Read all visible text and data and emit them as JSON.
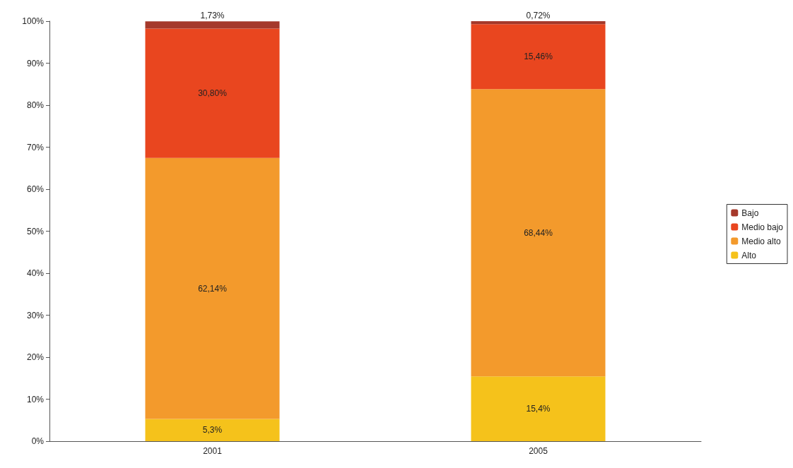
{
  "chart_data": {
    "type": "bar",
    "stacked": true,
    "categories": [
      "2001",
      "2005"
    ],
    "series": [
      {
        "name": "Alto",
        "color": "#f5c21b",
        "values": [
          5.3,
          15.4
        ],
        "value_labels": [
          "5,3%",
          "15,4%"
        ]
      },
      {
        "name": "Medio alto",
        "color": "#f39a2c",
        "values": [
          62.14,
          68.44
        ],
        "value_labels": [
          "62,14%",
          "68,44%"
        ]
      },
      {
        "name": "Medio bajo",
        "color": "#e9461f",
        "values": [
          30.8,
          15.46
        ],
        "value_labels": [
          "30,80%",
          "15,46%"
        ]
      },
      {
        "name": "Bajo",
        "color": "#a5392b",
        "values": [
          1.73,
          0.72
        ],
        "value_labels": [
          "1,73%",
          "0,72%"
        ]
      }
    ],
    "ylim": [
      0,
      100
    ],
    "yticks": [
      {
        "value": 0,
        "label": "0%"
      },
      {
        "value": 10,
        "label": "10%"
      },
      {
        "value": 20,
        "label": "20%"
      },
      {
        "value": 30,
        "label": "30%"
      },
      {
        "value": 40,
        "label": "40%"
      },
      {
        "value": 50,
        "label": "50%"
      },
      {
        "value": 60,
        "label": "60%"
      },
      {
        "value": 70,
        "label": "70%"
      },
      {
        "value": 80,
        "label": "80%"
      },
      {
        "value": 90,
        "label": "90%"
      },
      {
        "value": 100,
        "label": "100%"
      }
    ],
    "grid": false,
    "legend": "right"
  }
}
